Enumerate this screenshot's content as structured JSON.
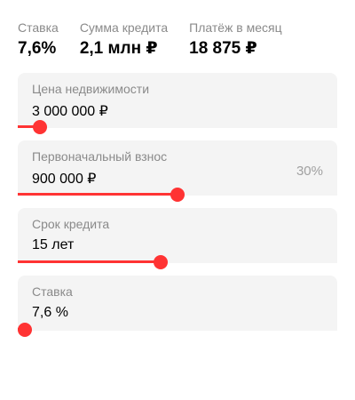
{
  "summary": {
    "rate_label": "Ставка",
    "rate_value": "7,6%",
    "amount_label": "Сумма кредита",
    "amount_value": "2,1 млн ₽",
    "payment_label": "Платёж в месяц",
    "payment_value": "18 875 ₽"
  },
  "fields": {
    "price": {
      "label": "Цена недвижимости",
      "value": "3 000 000 ₽",
      "level": 0.07
    },
    "down": {
      "label": "Первоначальный взнос",
      "value": "900 000 ₽",
      "suffix": "30%",
      "level": 0.5
    },
    "term": {
      "label": "Срок кредита",
      "value": "15 лет",
      "level": 0.447
    },
    "rate": {
      "label": "Ставка",
      "value": "7,6 %",
      "level": 0.022
    }
  },
  "colors": {
    "accent": "#ff3333",
    "field_bg": "#f4f4f4",
    "muted": "#8a8a8a"
  }
}
